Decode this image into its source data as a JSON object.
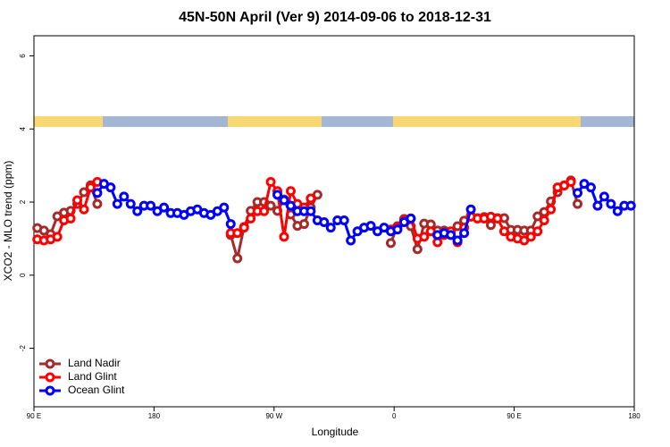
{
  "chart_data": {
    "type": "line",
    "title": "45N-50N April (Ver 9)   2014-09-06 to 2018-12-31",
    "x_label": "Longitude",
    "y_label": "XCO2 - MLO trend (ppm)",
    "x": [
      92.5,
      97.5,
      102.5,
      107.5,
      112.5,
      117.5,
      122.5,
      127.5,
      132.5,
      137.5,
      142.5,
      147.5,
      152.5,
      157.5,
      162.5,
      167.5,
      172.5,
      177.5,
      182.5,
      187.5,
      192.5,
      197.5,
      202.5,
      207.5,
      212.5,
      217.5,
      222.5,
      227.5,
      232.5,
      237.5,
      242.5,
      247.5,
      252.5,
      257.5,
      262.5,
      267.5,
      272.5,
      277.5,
      282.5,
      287.5,
      292.5,
      297.5,
      302.5,
      307.5,
      312.5,
      317.5,
      322.5,
      327.5,
      332.5,
      337.5,
      342.5,
      347.5,
      352.5,
      357.5,
      362.5,
      367.5,
      372.5,
      377.5,
      382.5,
      387.5,
      392.5,
      397.5,
      402.5,
      407.5,
      412.5,
      417.5,
      422.5,
      427.5,
      432.5,
      437.5,
      442.5,
      447.5,
      452.5,
      457.5,
      462.5,
      467.5,
      472.5,
      477.5,
      482.5,
      487.5,
      492.5,
      497.5,
      502.5,
      507.5,
      512.5,
      517.5,
      522.5,
      527.5,
      532.5,
      537.5
    ],
    "series": [
      {
        "name": "Land Nadir",
        "color": "#a52a2a",
        "values": [
          1.29,
          1.22,
          1.12,
          1.61,
          1.71,
          1.76,
          1.95,
          2.27,
          2.46,
          1.95,
          null,
          null,
          null,
          null,
          null,
          null,
          null,
          null,
          null,
          null,
          null,
          null,
          null,
          null,
          null,
          null,
          null,
          null,
          null,
          1.1,
          0.46,
          1.32,
          1.76,
          2.0,
          2.0,
          1.9,
          1.76,
          2.07,
          1.66,
          1.35,
          1.4,
          1.85,
          2.2,
          null,
          null,
          null,
          null,
          null,
          null,
          null,
          null,
          null,
          null,
          0.88,
          1.34,
          1.54,
          1.34,
          0.71,
          1.41,
          1.39,
          1.22,
          1.22,
          1.17,
          1.34,
          1.49,
          1.63,
          1.56,
          1.59,
          1.37,
          1.56,
          1.56,
          1.24,
          1.24,
          1.22,
          1.22,
          1.61,
          1.73,
          2.02,
          2.27,
          2.46,
          2.59,
          1.95,
          null,
          null,
          null,
          null,
          null,
          null,
          null,
          null
        ]
      },
      {
        "name": "Land Glint",
        "color": "#ff0000",
        "values": [
          0.98,
          0.95,
          0.98,
          1.05,
          1.5,
          1.55,
          2.05,
          1.8,
          2.4,
          2.55,
          null,
          null,
          null,
          null,
          null,
          null,
          null,
          null,
          null,
          null,
          null,
          null,
          null,
          null,
          null,
          null,
          null,
          null,
          null,
          1.15,
          1.15,
          1.3,
          1.55,
          1.75,
          1.75,
          2.55,
          2.3,
          1.05,
          2.3,
          1.95,
          1.85,
          2.1,
          null,
          null,
          null,
          null,
          null,
          null,
          null,
          null,
          null,
          null,
          null,
          1.25,
          1.3,
          1.5,
          1.55,
          1.0,
          1.05,
          1.2,
          0.9,
          1.1,
          1.2,
          0.9,
          1.3,
          1.6,
          1.55,
          1.55,
          1.6,
          1.55,
          1.2,
          1.05,
          1.0,
          0.95,
          1.05,
          1.2,
          1.5,
          1.8,
          2.4,
          2.45,
          2.55,
          null,
          null,
          null,
          null,
          null,
          null,
          null,
          null,
          null
        ]
      },
      {
        "name": "Ocean Glint",
        "color": "#0000ff",
        "values": [
          null,
          null,
          null,
          null,
          null,
          null,
          null,
          null,
          null,
          2.25,
          2.5,
          2.4,
          1.95,
          2.15,
          1.95,
          1.75,
          1.9,
          1.9,
          1.75,
          1.85,
          1.7,
          1.7,
          1.65,
          1.75,
          1.8,
          1.7,
          1.65,
          1.75,
          1.85,
          1.4,
          null,
          null,
          null,
          null,
          null,
          null,
          2.2,
          2.05,
          1.9,
          1.75,
          1.75,
          1.75,
          1.5,
          1.45,
          1.3,
          1.5,
          1.5,
          0.95,
          1.2,
          1.3,
          1.35,
          1.2,
          1.3,
          1.2,
          1.25,
          1.45,
          1.55,
          null,
          null,
          null,
          1.1,
          1.15,
          1.1,
          0.95,
          1.15,
          1.8,
          null,
          null,
          null,
          null,
          null,
          null,
          null,
          null,
          null,
          null,
          null,
          null,
          null,
          null,
          null,
          2.25,
          2.5,
          2.4,
          1.9,
          2.15,
          1.95,
          1.75,
          1.9,
          1.9
        ]
      }
    ],
    "xlim": [
      90,
      540
    ],
    "xticks": [
      {
        "value": 90,
        "label": "90 E"
      },
      {
        "value": 180,
        "label": "180"
      },
      {
        "value": 270,
        "label": "90 W"
      },
      {
        "value": 360,
        "label": "0"
      },
      {
        "value": 450,
        "label": "90 E"
      },
      {
        "value": 540,
        "label": "180"
      }
    ],
    "ylim": [
      -3.6,
      6.55
    ],
    "yticks": [
      -2,
      0,
      2,
      4,
      6
    ],
    "legend": "bottom-left"
  }
}
